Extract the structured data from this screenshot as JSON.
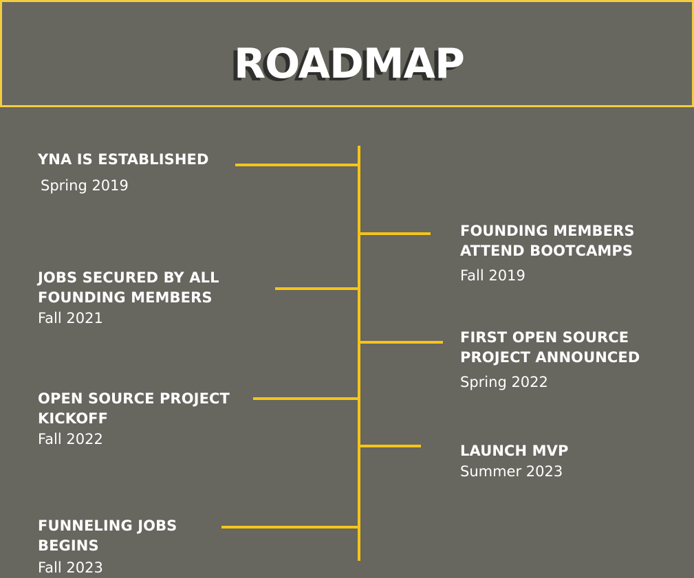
{
  "title": "ROADMAP",
  "colors": {
    "background": "#67665f",
    "accent": "#f5c518",
    "border": "#f3cd3f",
    "text": "#ffffff",
    "title_shadow": "#2f2f2d"
  },
  "events": [
    {
      "title": "YNA IS ESTABLISHED",
      "date": "Spring 2019"
    },
    {
      "title": "FOUNDING MEMBERS ATTEND BOOTCAMPS",
      "date": "Fall 2019"
    },
    {
      "title": "JOBS SECURED BY ALL FOUNDING MEMBERS",
      "date": "Fall 2021"
    },
    {
      "title": "FIRST OPEN SOURCE PROJECT ANNOUNCED",
      "date": "Spring 2022"
    },
    {
      "title": "OPEN SOURCE PROJECT KICKOFF",
      "date": "Fall 2022"
    },
    {
      "title": "LAUNCH MVP",
      "date": "Summer 2023"
    },
    {
      "title": "FUNNELING JOBS BEGINS",
      "date": "Fall 2023"
    }
  ]
}
